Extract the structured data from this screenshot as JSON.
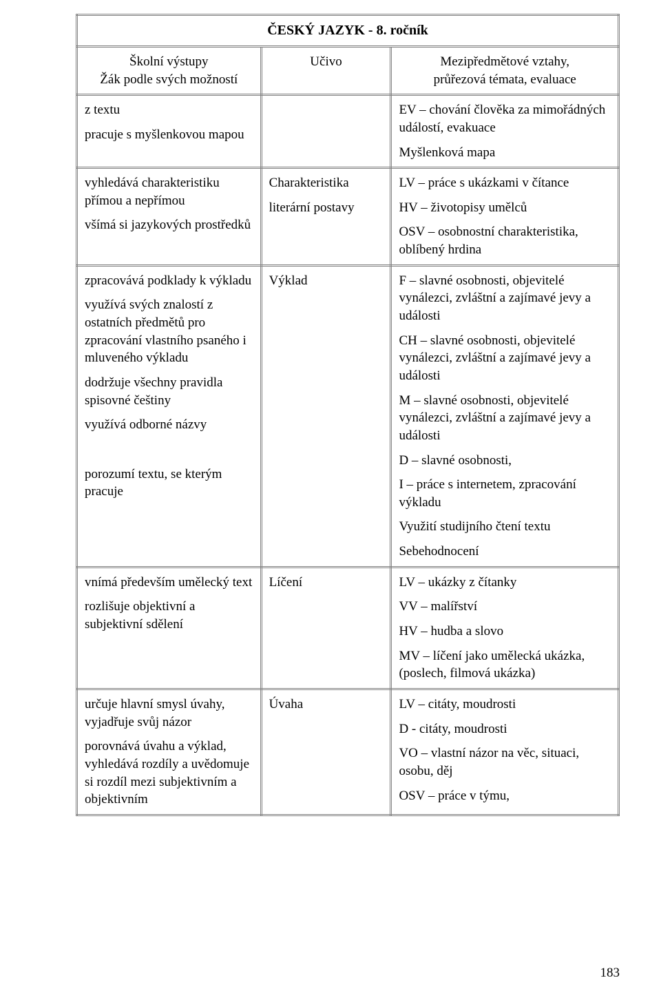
{
  "title": "ČESKÝ JAZYK - 8. ročník",
  "page_number": "183",
  "headers": {
    "col_a_line1": "Školní výstupy",
    "col_a_line2": "Žák podle svých možností",
    "col_b": "Učivo",
    "col_c_line1": "Mezipředmětové vztahy,",
    "col_c_line2": "průřezová témata, evaluace"
  },
  "rows": [
    {
      "a": [
        "z textu",
        "pracuje s myšlenkovou mapou"
      ],
      "b": [],
      "c": [
        "EV – chování člověka za mimořádných událostí, evakuace",
        "Myšlenková mapa"
      ]
    },
    {
      "a": [
        "vyhledává charakteristiku přímou a nepřímou",
        "všímá si jazykových prostředků"
      ],
      "b": [
        "Charakteristika",
        "literární postavy"
      ],
      "c": [
        "LV – práce s ukázkami v čítance",
        "HV – životopisy umělců",
        "OSV – osobnostní charakteristika, oblíbený hrdina"
      ]
    },
    {
      "a": [
        "zpracovává podklady k výkladu",
        "využívá svých znalostí z ostatních předmětů pro zpracování vlastního psaného i mluveného výkladu",
        "dodržuje všechny pravidla spisovné češtiny",
        "využívá odborné názvy",
        "",
        "porozumí textu, se kterým pracuje"
      ],
      "b": [
        "Výklad"
      ],
      "c": [
        "F – slavné osobnosti, objevitelé vynálezci, zvláštní a zajímavé jevy a události",
        "CH – slavné osobnosti, objevitelé vynálezci, zvláštní a zajímavé jevy a události",
        "M – slavné osobnosti, objevitelé vynálezci, zvláštní a zajímavé jevy a události",
        "D – slavné osobnosti,",
        "I – práce s internetem, zpracování výkladu",
        "Využití studijního čtení textu",
        "Sebehodnocení"
      ]
    },
    {
      "a": [
        "vnímá především umělecký text",
        "rozlišuje objektivní a subjektivní sdělení"
      ],
      "b": [
        "Líčení"
      ],
      "c": [
        "LV – ukázky z čítanky",
        "VV – malířství",
        "HV – hudba a slovo",
        "MV – líčení jako umělecká ukázka, (poslech, filmová ukázka)"
      ]
    },
    {
      "a": [
        "určuje hlavní smysl úvahy, vyjadřuje svůj názor",
        "porovnává úvahu a výklad, vyhledává rozdíly a uvědomuje si rozdíl mezi subjektivním a objektivním"
      ],
      "b": [
        "Úvaha"
      ],
      "c": [
        "LV – citáty, moudrosti",
        "D - citáty, moudrosti",
        "VO – vlastní názor na věc, situaci, osobu, děj",
        "OSV – práce v týmu,"
      ]
    }
  ]
}
